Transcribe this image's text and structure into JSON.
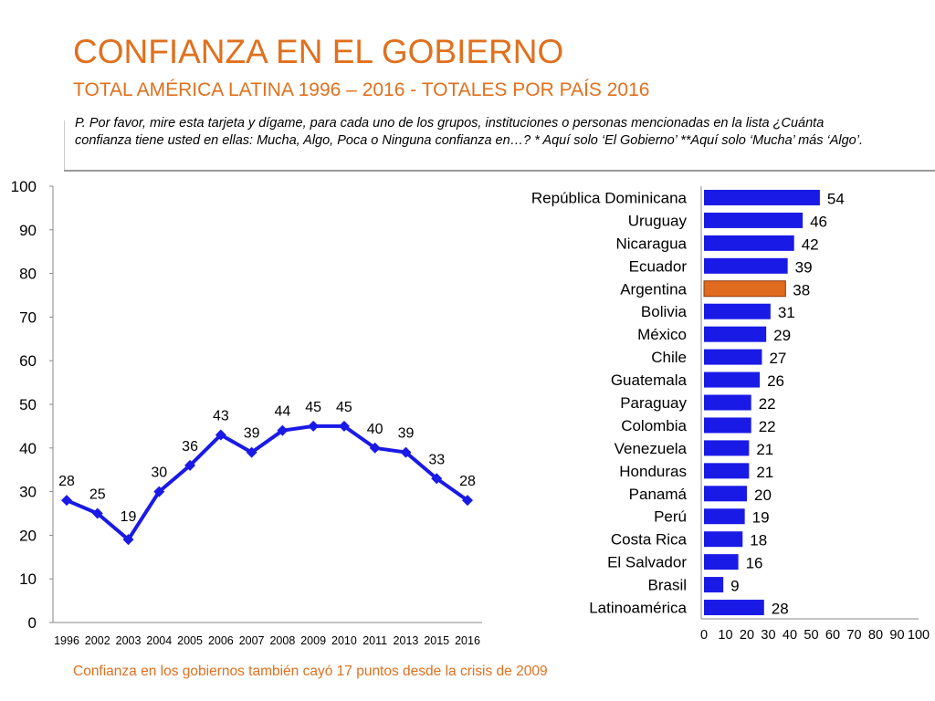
{
  "header": {
    "title": "CONFIANZA EN EL GOBIERNO",
    "subtitle": "TOTAL AMÉRICA LATINA 1996 – 2016 - TOTALES POR PAÍS 2016",
    "question": "P. Por favor, mire esta tarjeta y dígame, para cada uno de los grupos, instituciones o personas mencionadas en la lista ¿Cuánta confianza tiene usted en ellas: Mucha, Algo, Poca o Ninguna confianza en…? * Aquí solo ‘El Gobierno’ **Aquí solo ‘Mucha’ más ‘Algo’."
  },
  "footnote": "Confianza en los gobiernos también cayó 17 puntos desde la crisis de 2009",
  "colors": {
    "accent": "#E0701E",
    "series": "#1A1AE6",
    "highlight": "#E06A1E"
  },
  "chart_data": [
    {
      "type": "line",
      "title": "",
      "x": [
        "1996",
        "2002",
        "2003",
        "2004",
        "2005",
        "2006",
        "2007",
        "2008",
        "2009",
        "2010",
        "2011",
        "2013",
        "2015",
        "2016"
      ],
      "values": [
        28,
        25,
        19,
        30,
        36,
        43,
        39,
        44,
        45,
        45,
        40,
        39,
        33,
        28
      ],
      "yticks": [
        "0",
        "10",
        "20",
        "30",
        "40",
        "50",
        "60",
        "70",
        "80",
        "90",
        "100"
      ],
      "ylim": [
        0,
        100
      ],
      "xlabel": "",
      "ylabel": "",
      "grid": false,
      "marker": "diamond"
    },
    {
      "type": "bar",
      "orientation": "horizontal",
      "categories": [
        "República Dominicana",
        "Uruguay",
        "Nicaragua",
        "Ecuador",
        "Argentina",
        "Bolivia",
        "México",
        "Chile",
        "Guatemala",
        "Paraguay",
        "Colombia",
        "Venezuela",
        "Honduras",
        "Panamá",
        "Perú",
        "Costa Rica",
        "El Salvador",
        "Brasil",
        "Latinoamérica"
      ],
      "values": [
        54,
        46,
        42,
        39,
        38,
        31,
        29,
        27,
        26,
        22,
        22,
        21,
        21,
        20,
        19,
        18,
        16,
        9,
        28
      ],
      "highlight": "Argentina",
      "xticks": [
        "0",
        "10",
        "20",
        "30",
        "40",
        "50",
        "60",
        "70",
        "80",
        "90",
        "100"
      ],
      "xlim": [
        0,
        100
      ],
      "grid": false
    }
  ]
}
